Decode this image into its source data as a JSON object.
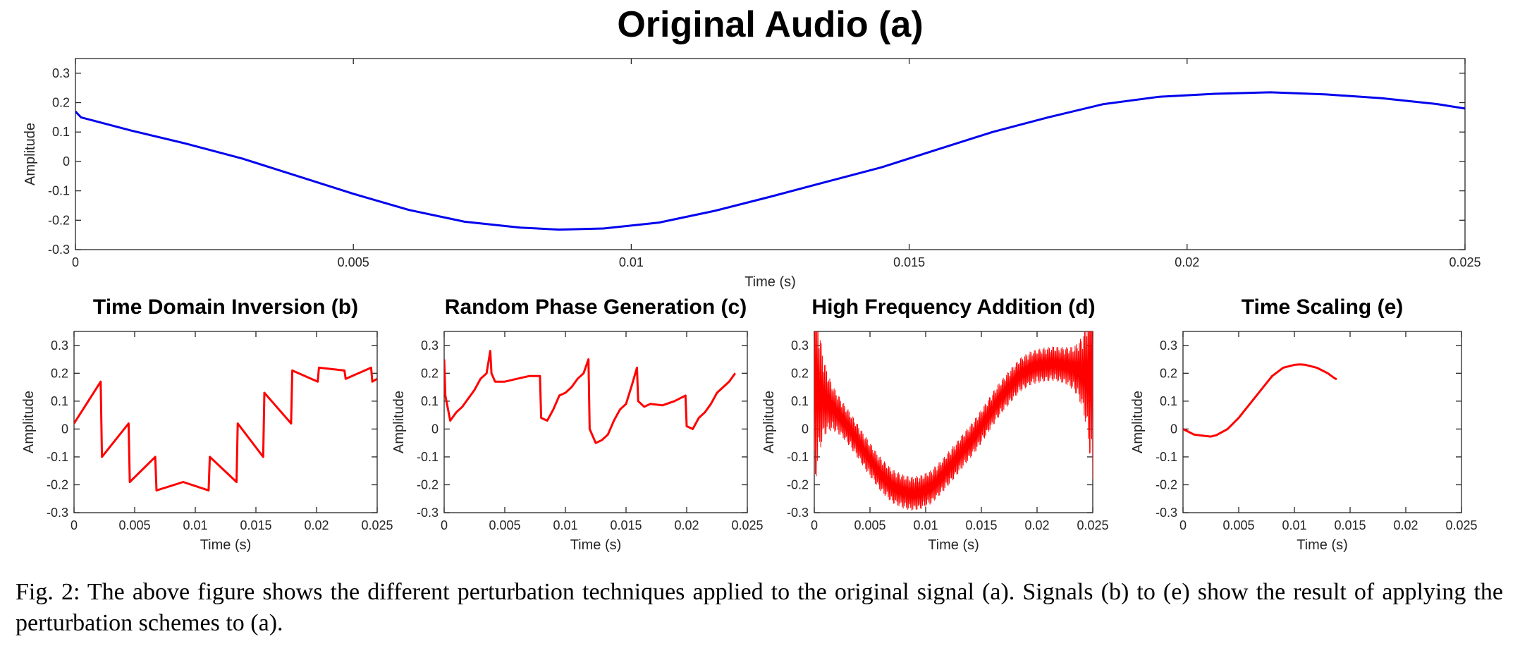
{
  "caption": "Fig. 2: The above figure shows the different perturbation techniques applied to the original signal (a). Signals (b) to (e) show the result of applying the perturbation schemes to (a).",
  "line_colors": {
    "original": "#0000ee",
    "perturbed": "#ff0000"
  },
  "chart_data": [
    {
      "id": "a",
      "type": "line",
      "title": "Original Audio (a)",
      "xlabel": "Time (s)",
      "ylabel": "Amplitude",
      "xlim": [
        0,
        0.025
      ],
      "ylim": [
        -0.3,
        0.35
      ],
      "xticks": [
        0,
        0.005,
        0.01,
        0.015,
        0.02,
        0.025
      ],
      "xtick_labels": [
        "0",
        "0.005",
        "0.01",
        "0.015",
        "0.02",
        "0.025"
      ],
      "yticks": [
        -0.3,
        -0.2,
        -0.1,
        0,
        0.1,
        0.2,
        0.3
      ],
      "ytick_labels": [
        "-0.3",
        "-0.2",
        "-0.1",
        "0",
        "0.1",
        "0.2",
        "0.3"
      ],
      "grid": false,
      "color": "#0000ee",
      "series": [
        {
          "x": [
            0,
            0.0001,
            0.0003,
            0.001,
            0.002,
            0.003,
            0.004,
            0.005,
            0.006,
            0.007,
            0.008,
            0.0087,
            0.0095,
            0.0105,
            0.0115,
            0.0125,
            0.0135,
            0.0145,
            0.0155,
            0.0165,
            0.0175,
            0.0185,
            0.0195,
            0.0205,
            0.0215,
            0.0225,
            0.0235,
            0.0245,
            0.025
          ],
          "y": [
            0.17,
            0.15,
            0.14,
            0.105,
            0.06,
            0.01,
            -0.05,
            -0.11,
            -0.165,
            -0.205,
            -0.225,
            -0.232,
            -0.228,
            -0.208,
            -0.168,
            -0.12,
            -0.07,
            -0.02,
            0.04,
            0.1,
            0.15,
            0.195,
            0.22,
            0.23,
            0.235,
            0.228,
            0.215,
            0.195,
            0.18
          ]
        }
      ]
    },
    {
      "id": "b",
      "type": "line",
      "title": "Time Domain Inversion (b)",
      "xlabel": "Time (s)",
      "ylabel": "Amplitude",
      "xlim": [
        0,
        0.025
      ],
      "ylim": [
        -0.3,
        0.35
      ],
      "xticks": [
        0,
        0.005,
        0.01,
        0.015,
        0.02,
        0.025
      ],
      "xtick_labels": [
        "0",
        "0.005",
        "0.01",
        "0.015",
        "0.02",
        "0.025"
      ],
      "yticks": [
        -0.3,
        -0.2,
        -0.1,
        0,
        0.1,
        0.2,
        0.3
      ],
      "ytick_labels": [
        "-0.3",
        "-0.2",
        "-0.1",
        "0",
        "0.1",
        "0.2",
        "0.3"
      ],
      "grid": false,
      "color": "#ff0000",
      "series": [
        {
          "x": [
            0,
            0.0022,
            0.0023,
            0.0045,
            0.0046,
            0.0067,
            0.0068,
            0.009,
            0.0111,
            0.0112,
            0.0134,
            0.0135,
            0.0156,
            0.0157,
            0.0179,
            0.018,
            0.0201,
            0.0202,
            0.0223,
            0.0224,
            0.0245,
            0.0246,
            0.025
          ],
          "y": [
            0.02,
            0.17,
            -0.1,
            0.02,
            -0.19,
            -0.1,
            -0.22,
            -0.19,
            -0.22,
            -0.1,
            -0.19,
            0.02,
            -0.1,
            0.13,
            0.02,
            0.21,
            0.17,
            0.22,
            0.21,
            0.18,
            0.22,
            0.17,
            0.18
          ]
        }
      ]
    },
    {
      "id": "c",
      "type": "line",
      "title": "Random Phase Generation (c)",
      "xlabel": "Time (s)",
      "ylabel": "Amplitude",
      "xlim": [
        0,
        0.025
      ],
      "ylim": [
        -0.3,
        0.35
      ],
      "xticks": [
        0,
        0.005,
        0.01,
        0.015,
        0.02,
        0.025
      ],
      "xtick_labels": [
        "0",
        "0.005",
        "0.01",
        "0.015",
        "0.02",
        "0.025"
      ],
      "yticks": [
        -0.3,
        -0.2,
        -0.1,
        0,
        0.1,
        0.2,
        0.3
      ],
      "ytick_labels": [
        "-0.3",
        "-0.2",
        "-0.1",
        "0",
        "0.1",
        "0.2",
        "0.3"
      ],
      "grid": false,
      "color": "#ff0000",
      "series": [
        {
          "x": [
            0,
            0.0001,
            0.0005,
            0.001,
            0.0015,
            0.002,
            0.0025,
            0.003,
            0.0035,
            0.0038,
            0.0039,
            0.0042,
            0.005,
            0.006,
            0.007,
            0.0079,
            0.008,
            0.0085,
            0.009,
            0.0095,
            0.01,
            0.0105,
            0.011,
            0.0115,
            0.0119,
            0.012,
            0.0125,
            0.013,
            0.0135,
            0.014,
            0.0145,
            0.015,
            0.0155,
            0.0159,
            0.016,
            0.0165,
            0.017,
            0.018,
            0.019,
            0.0199,
            0.02,
            0.0205,
            0.021,
            0.0215,
            0.022,
            0.0225,
            0.023,
            0.0235,
            0.024
          ],
          "y": [
            0.25,
            0.12,
            0.03,
            0.06,
            0.08,
            0.11,
            0.14,
            0.18,
            0.2,
            0.28,
            0.2,
            0.17,
            0.17,
            0.18,
            0.19,
            0.19,
            0.04,
            0.03,
            0.07,
            0.12,
            0.13,
            0.15,
            0.18,
            0.2,
            0.25,
            0.0,
            -0.05,
            -0.04,
            -0.02,
            0.03,
            0.07,
            0.09,
            0.16,
            0.22,
            0.1,
            0.08,
            0.09,
            0.085,
            0.1,
            0.12,
            0.01,
            0.0,
            0.04,
            0.06,
            0.09,
            0.13,
            0.15,
            0.17,
            0.2
          ]
        }
      ]
    },
    {
      "id": "d",
      "type": "line",
      "title": "High Frequency Addition (d)",
      "xlabel": "Time (s)",
      "ylabel": "Amplitude",
      "xlim": [
        0,
        0.025
      ],
      "ylim": [
        -0.3,
        0.35
      ],
      "xticks": [
        0,
        0.005,
        0.01,
        0.015,
        0.02,
        0.025
      ],
      "xtick_labels": [
        "0",
        "0.005",
        "0.01",
        "0.015",
        "0.02",
        "0.025"
      ],
      "yticks": [
        -0.3,
        -0.2,
        -0.1,
        0,
        0.1,
        0.2,
        0.3
      ],
      "ytick_labels": [
        "-0.3",
        "-0.2",
        "-0.1",
        "0",
        "0.1",
        "0.2",
        "0.3"
      ],
      "grid": false,
      "color": "#ff0000",
      "series": [
        {
          "x": [
            0,
            0.0001,
            0.0003,
            0.001,
            0.002,
            0.003,
            0.004,
            0.005,
            0.006,
            0.007,
            0.008,
            0.0087,
            0.0095,
            0.0105,
            0.0115,
            0.0125,
            0.0135,
            0.0145,
            0.0155,
            0.0165,
            0.0175,
            0.0185,
            0.0195,
            0.0205,
            0.0215,
            0.0225,
            0.0235,
            0.0245,
            0.025
          ],
          "y": [
            0.17,
            0.15,
            0.14,
            0.105,
            0.06,
            0.01,
            -0.05,
            -0.11,
            -0.165,
            -0.205,
            -0.225,
            -0.232,
            -0.228,
            -0.208,
            -0.168,
            -0.12,
            -0.07,
            -0.02,
            0.04,
            0.1,
            0.15,
            0.195,
            0.22,
            0.23,
            0.235,
            0.228,
            0.215,
            0.195,
            0.18
          ]
        }
      ]
    },
    {
      "id": "e",
      "type": "line",
      "title": "Time Scaling (e)",
      "xlabel": "Time (s)",
      "ylabel": "Amplitude",
      "xlim": [
        0,
        0.025
      ],
      "ylim": [
        -0.3,
        0.35
      ],
      "xticks": [
        0,
        0.005,
        0.01,
        0.015,
        0.02,
        0.025
      ],
      "xtick_labels": [
        "0",
        "0.005",
        "0.01",
        "0.015",
        "0.02",
        "0.025"
      ],
      "yticks": [
        -0.3,
        -0.2,
        -0.1,
        0,
        0.1,
        0.2,
        0.3
      ],
      "ytick_labels": [
        "-0.3",
        "-0.2",
        "-0.1",
        "0",
        "0.1",
        "0.2",
        "0.3"
      ],
      "grid": false,
      "color": "#ff0000",
      "series": [
        {
          "x": [
            0,
            0.001,
            0.002,
            0.0025,
            0.003,
            0.004,
            0.005,
            0.006,
            0.007,
            0.008,
            0.009,
            0.01,
            0.0105,
            0.011,
            0.012,
            0.013,
            0.0135,
            0.0138
          ],
          "y": [
            0.0,
            -0.02,
            -0.025,
            -0.027,
            -0.022,
            0.0,
            0.04,
            0.09,
            0.14,
            0.19,
            0.22,
            0.23,
            0.232,
            0.23,
            0.22,
            0.2,
            0.185,
            0.178
          ]
        }
      ]
    }
  ]
}
